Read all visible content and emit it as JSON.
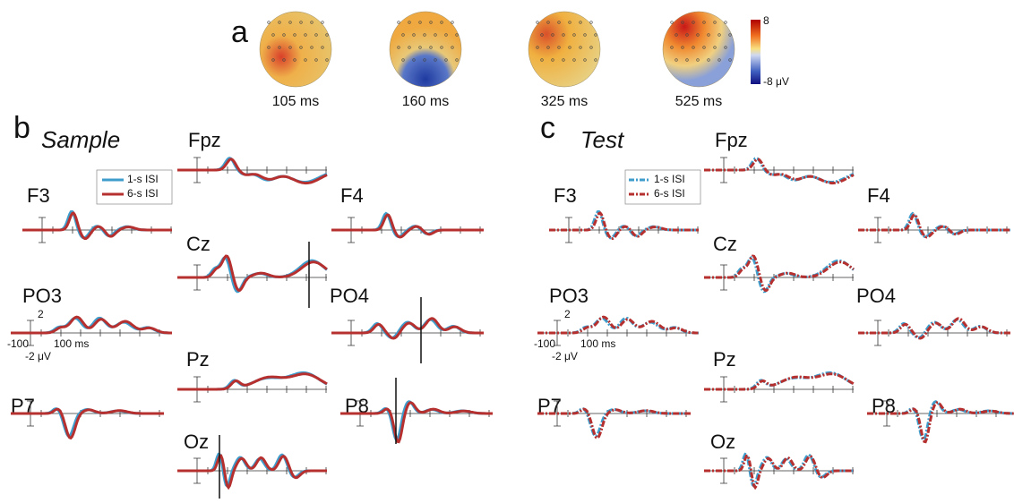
{
  "panel_a": {
    "label": "a",
    "heads": [
      "105 ms",
      "160 ms",
      "325 ms",
      "525 ms"
    ],
    "colorbar": {
      "max": "8",
      "min": "-8 μV"
    }
  },
  "panel_b": {
    "label": "b",
    "title": "Sample",
    "legend": [
      "1-s ISI",
      "6-s ISI"
    ],
    "electrodes": [
      "Fpz",
      "F3",
      "F4",
      "Cz",
      "PO3",
      "PO4",
      "Pz",
      "P7",
      "P8",
      "Oz"
    ],
    "scale": {
      "y_top": "2",
      "x_left": "-100",
      "x_right": "100 ms",
      "y_bottom": "-2 μV"
    }
  },
  "panel_c": {
    "label": "c",
    "title": "Test",
    "legend": [
      "1-s ISI",
      "6-s ISI"
    ],
    "electrodes": [
      "Fpz",
      "F3",
      "F4",
      "Cz",
      "PO3",
      "PO4",
      "Pz",
      "P7",
      "P8",
      "Oz"
    ],
    "scale": {
      "y_top": "2",
      "x_left": "-100",
      "x_right": "100 ms",
      "y_bottom": "-2 μV"
    }
  }
}
